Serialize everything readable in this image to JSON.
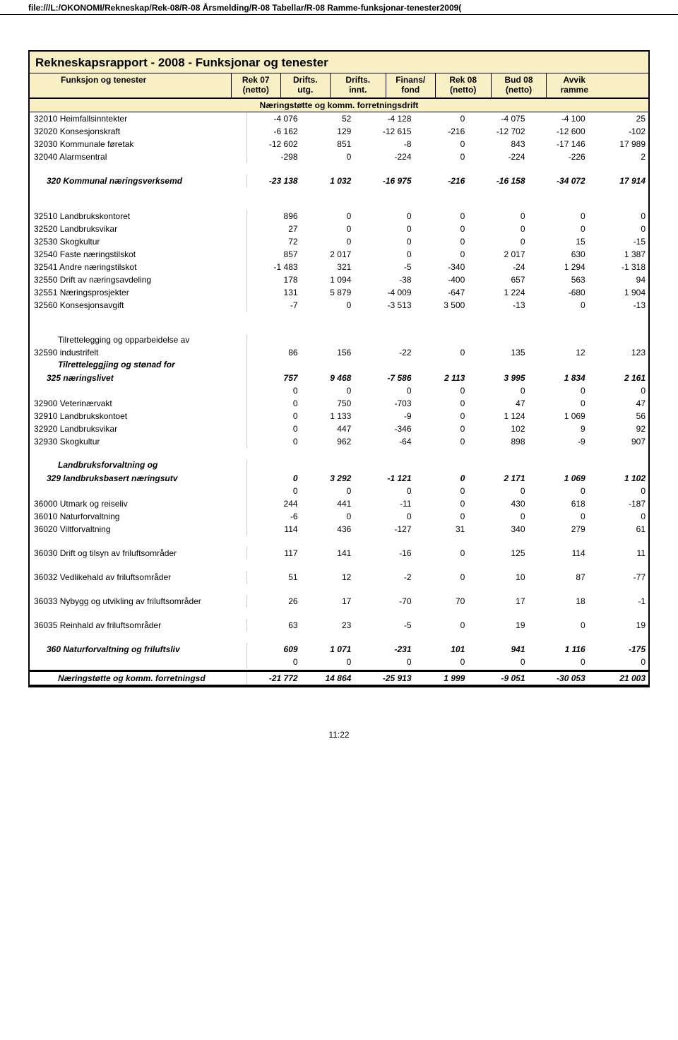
{
  "url": "file:///L:/OKONOMI/Rekneskap/Rek-08/R-08 Årsmelding/R-08 Tabellar/R-08 Ramme-funksjonar-tenester2009(",
  "title": "Rekneskapsrapport - 2008 - Funksjonar og tenester",
  "section": "Næringstøtte og komm. forretningsdrift",
  "columns": [
    {
      "l1": "Funksjon og tenester",
      "l2": ""
    },
    {
      "l1": "Rek 07",
      "l2": "(netto)"
    },
    {
      "l1": "Drifts.",
      "l2": "utg."
    },
    {
      "l1": "Drifts.",
      "l2": "innt."
    },
    {
      "l1": "Finans/",
      "l2": "fond"
    },
    {
      "l1": "Rek 08",
      "l2": "(netto)"
    },
    {
      "l1": "Bud 08",
      "l2": "(netto)"
    },
    {
      "l1": "Avvik",
      "l2": "ramme"
    }
  ],
  "rows": [
    {
      "type": "data",
      "label": "32010 Heimfallsinntekter",
      "v": [
        "-4 076",
        "52",
        "-4 128",
        "0",
        "-4 075",
        "-4 100",
        "25"
      ]
    },
    {
      "type": "data",
      "label": "32020 Konsesjonskraft",
      "v": [
        "-6 162",
        "129",
        "-12 615",
        "-216",
        "-12 702",
        "-12 600",
        "-102"
      ]
    },
    {
      "type": "data",
      "label": "32030 Kommunale føretak",
      "v": [
        "-12 602",
        "851",
        "-8",
        "0",
        "843",
        "-17 146",
        "17 989"
      ]
    },
    {
      "type": "data",
      "label": "32040 Alarmsentral",
      "v": [
        "-298",
        "0",
        "-224",
        "0",
        "-224",
        "-226",
        "2"
      ]
    },
    {
      "type": "spacer"
    },
    {
      "type": "boldital",
      "indent": "indent1",
      "label": "320 Kommunal næringsverksemd",
      "v": [
        "-23 138",
        "1 032",
        "-16 975",
        "-216",
        "-16 158",
        "-34 072",
        "17 914"
      ]
    },
    {
      "type": "spacer"
    },
    {
      "type": "spacer"
    },
    {
      "type": "data",
      "label": "32510 Landbrukskontoret",
      "v": [
        "896",
        "0",
        "0",
        "0",
        "0",
        "0",
        "0"
      ]
    },
    {
      "type": "data",
      "label": "32520 Landbruksvikar",
      "v": [
        "27",
        "0",
        "0",
        "0",
        "0",
        "0",
        "0"
      ]
    },
    {
      "type": "data",
      "label": "32530 Skogkultur",
      "v": [
        "72",
        "0",
        "0",
        "0",
        "0",
        "15",
        "-15"
      ]
    },
    {
      "type": "data",
      "label": "32540 Faste næringstilskot",
      "v": [
        "857",
        "2 017",
        "0",
        "0",
        "2 017",
        "630",
        "1 387"
      ]
    },
    {
      "type": "data",
      "label": "32541 Andre næringstilskot",
      "v": [
        "-1 483",
        "321",
        "-5",
        "-340",
        "-24",
        "1 294",
        "-1 318"
      ]
    },
    {
      "type": "data",
      "label": "32550 Drift av næringsavdeling",
      "v": [
        "178",
        "1 094",
        "-38",
        "-400",
        "657",
        "563",
        "94"
      ]
    },
    {
      "type": "data",
      "label": "32551 Næringsprosjekter",
      "v": [
        "131",
        "5 879",
        "-4 009",
        "-647",
        "1 224",
        "-680",
        "1 904"
      ]
    },
    {
      "type": "data",
      "label": "32560 Konsesjonsavgift",
      "v": [
        "-7",
        "0",
        "-3 513",
        "3 500",
        "-13",
        "0",
        "-13"
      ]
    },
    {
      "type": "spacer"
    },
    {
      "type": "spacer"
    },
    {
      "type": "wrap",
      "code": "32590",
      "pre": "Tilrettelegging og opparbeidelse av",
      "post": "industrifelt",
      "v": [
        "86",
        "156",
        "-22",
        "0",
        "135",
        "12",
        "123"
      ]
    },
    {
      "type": "wrapbold",
      "code": "325",
      "pre": "Tilretteleggjing og stønad for",
      "post": "næringslivet",
      "v": [
        "757",
        "9 468",
        "-7 586",
        "2 113",
        "3 995",
        "1 834",
        "2 161"
      ]
    },
    {
      "type": "data",
      "label": "",
      "v": [
        "0",
        "0",
        "0",
        "0",
        "0",
        "0",
        "0"
      ]
    },
    {
      "type": "data",
      "label": "32900 Veterinærvakt",
      "v": [
        "0",
        "750",
        "-703",
        "0",
        "47",
        "0",
        "47"
      ]
    },
    {
      "type": "data",
      "label": "32910 Landbrukskontoet",
      "v": [
        "0",
        "1 133",
        "-9",
        "0",
        "1 124",
        "1 069",
        "56"
      ]
    },
    {
      "type": "data",
      "label": "32920 Landbruksvikar",
      "v": [
        "0",
        "447",
        "-346",
        "0",
        "102",
        "9",
        "92"
      ]
    },
    {
      "type": "data",
      "label": "32930 Skogkultur",
      "v": [
        "0",
        "962",
        "-64",
        "0",
        "898",
        "-9",
        "907"
      ]
    },
    {
      "type": "spacer"
    },
    {
      "type": "wrapbold",
      "code": "329",
      "pre": "Landbruksforvaltning og",
      "post": "landbruksbasert næringsutv",
      "v": [
        "0",
        "3 292",
        "-1 121",
        "0",
        "2 171",
        "1 069",
        "1 102"
      ]
    },
    {
      "type": "data",
      "label": "",
      "v": [
        "0",
        "0",
        "0",
        "0",
        "0",
        "0",
        "0"
      ]
    },
    {
      "type": "data",
      "label": "36000 Utmark og reiseliv",
      "v": [
        "244",
        "441",
        "-11",
        "0",
        "430",
        "618",
        "-187"
      ]
    },
    {
      "type": "data",
      "label": "36010 Naturforvaltning",
      "v": [
        "-6",
        "0",
        "0",
        "0",
        "0",
        "0",
        "0"
      ]
    },
    {
      "type": "data",
      "label": "36020 Viltforvaltning",
      "v": [
        "114",
        "436",
        "-127",
        "31",
        "340",
        "279",
        "61"
      ]
    },
    {
      "type": "spacer"
    },
    {
      "type": "data",
      "label": "36030 Drift og tilsyn av friluftsområder",
      "v": [
        "117",
        "141",
        "-16",
        "0",
        "125",
        "114",
        "11"
      ]
    },
    {
      "type": "spacer"
    },
    {
      "type": "data",
      "label": "36032 Vedlikehald av friluftsområder",
      "v": [
        "51",
        "12",
        "-2",
        "0",
        "10",
        "87",
        "-77"
      ]
    },
    {
      "type": "spacer"
    },
    {
      "type": "data",
      "label": "36033 Nybygg og utvikling av friluftsområder",
      "v": [
        "26",
        "17",
        "-70",
        "70",
        "17",
        "18",
        "-1"
      ]
    },
    {
      "type": "spacer"
    },
    {
      "type": "data",
      "label": "36035 Reinhald av friluftsområder",
      "v": [
        "63",
        "23",
        "-5",
        "0",
        "19",
        "0",
        "19"
      ]
    },
    {
      "type": "spacer"
    },
    {
      "type": "boldital",
      "indent": "indent1",
      "label": "360 Naturforvaltning og friluftsliv",
      "v": [
        "609",
        "1 071",
        "-231",
        "101",
        "941",
        "1 116",
        "-175"
      ]
    },
    {
      "type": "data",
      "label": "",
      "v": [
        "0",
        "0",
        "0",
        "0",
        "0",
        "0",
        "0"
      ]
    }
  ],
  "total": {
    "label": "Næringstøtte og komm. forretningsd",
    "v": [
      "-21 772",
      "14 864",
      "-25 913",
      "1 999",
      "-9 051",
      "-30 053",
      "21 003"
    ]
  },
  "page": "11:22"
}
